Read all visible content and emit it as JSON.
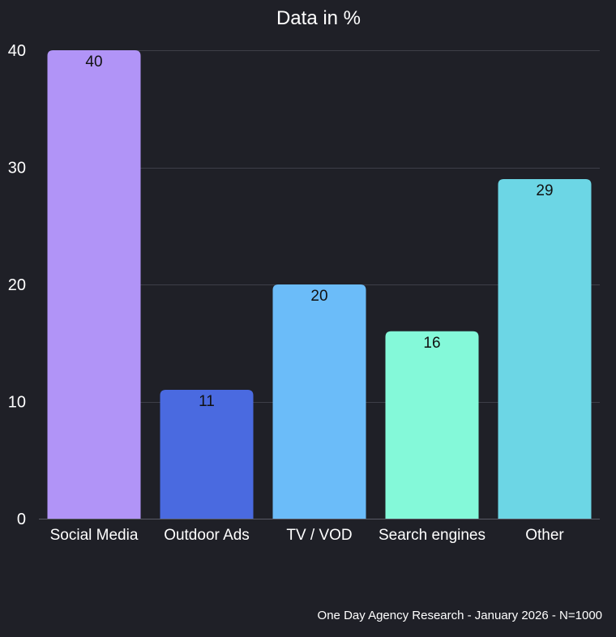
{
  "chart_data": {
    "type": "bar",
    "title": "Data in %",
    "categories": [
      "Social Media",
      "Outdoor Ads",
      "TV / VOD",
      "Search engines",
      "Other"
    ],
    "values": [
      40,
      11,
      20,
      16,
      29
    ],
    "value_labels": [
      "40",
      "11",
      "20",
      "16",
      "29"
    ],
    "colors": [
      "#b194f7",
      "#4a6ae0",
      "#6bbcf9",
      "#84f9d9",
      "#6cd6e5"
    ],
    "ylim": [
      0,
      40
    ],
    "yticks": [
      0,
      10,
      20,
      30,
      40
    ],
    "ytick_labels": [
      "0",
      "10",
      "20",
      "30",
      "40"
    ],
    "xlabel": "",
    "ylabel": "",
    "grid": true,
    "source": "One Day Agency Research - January 2026 - N=1000"
  }
}
